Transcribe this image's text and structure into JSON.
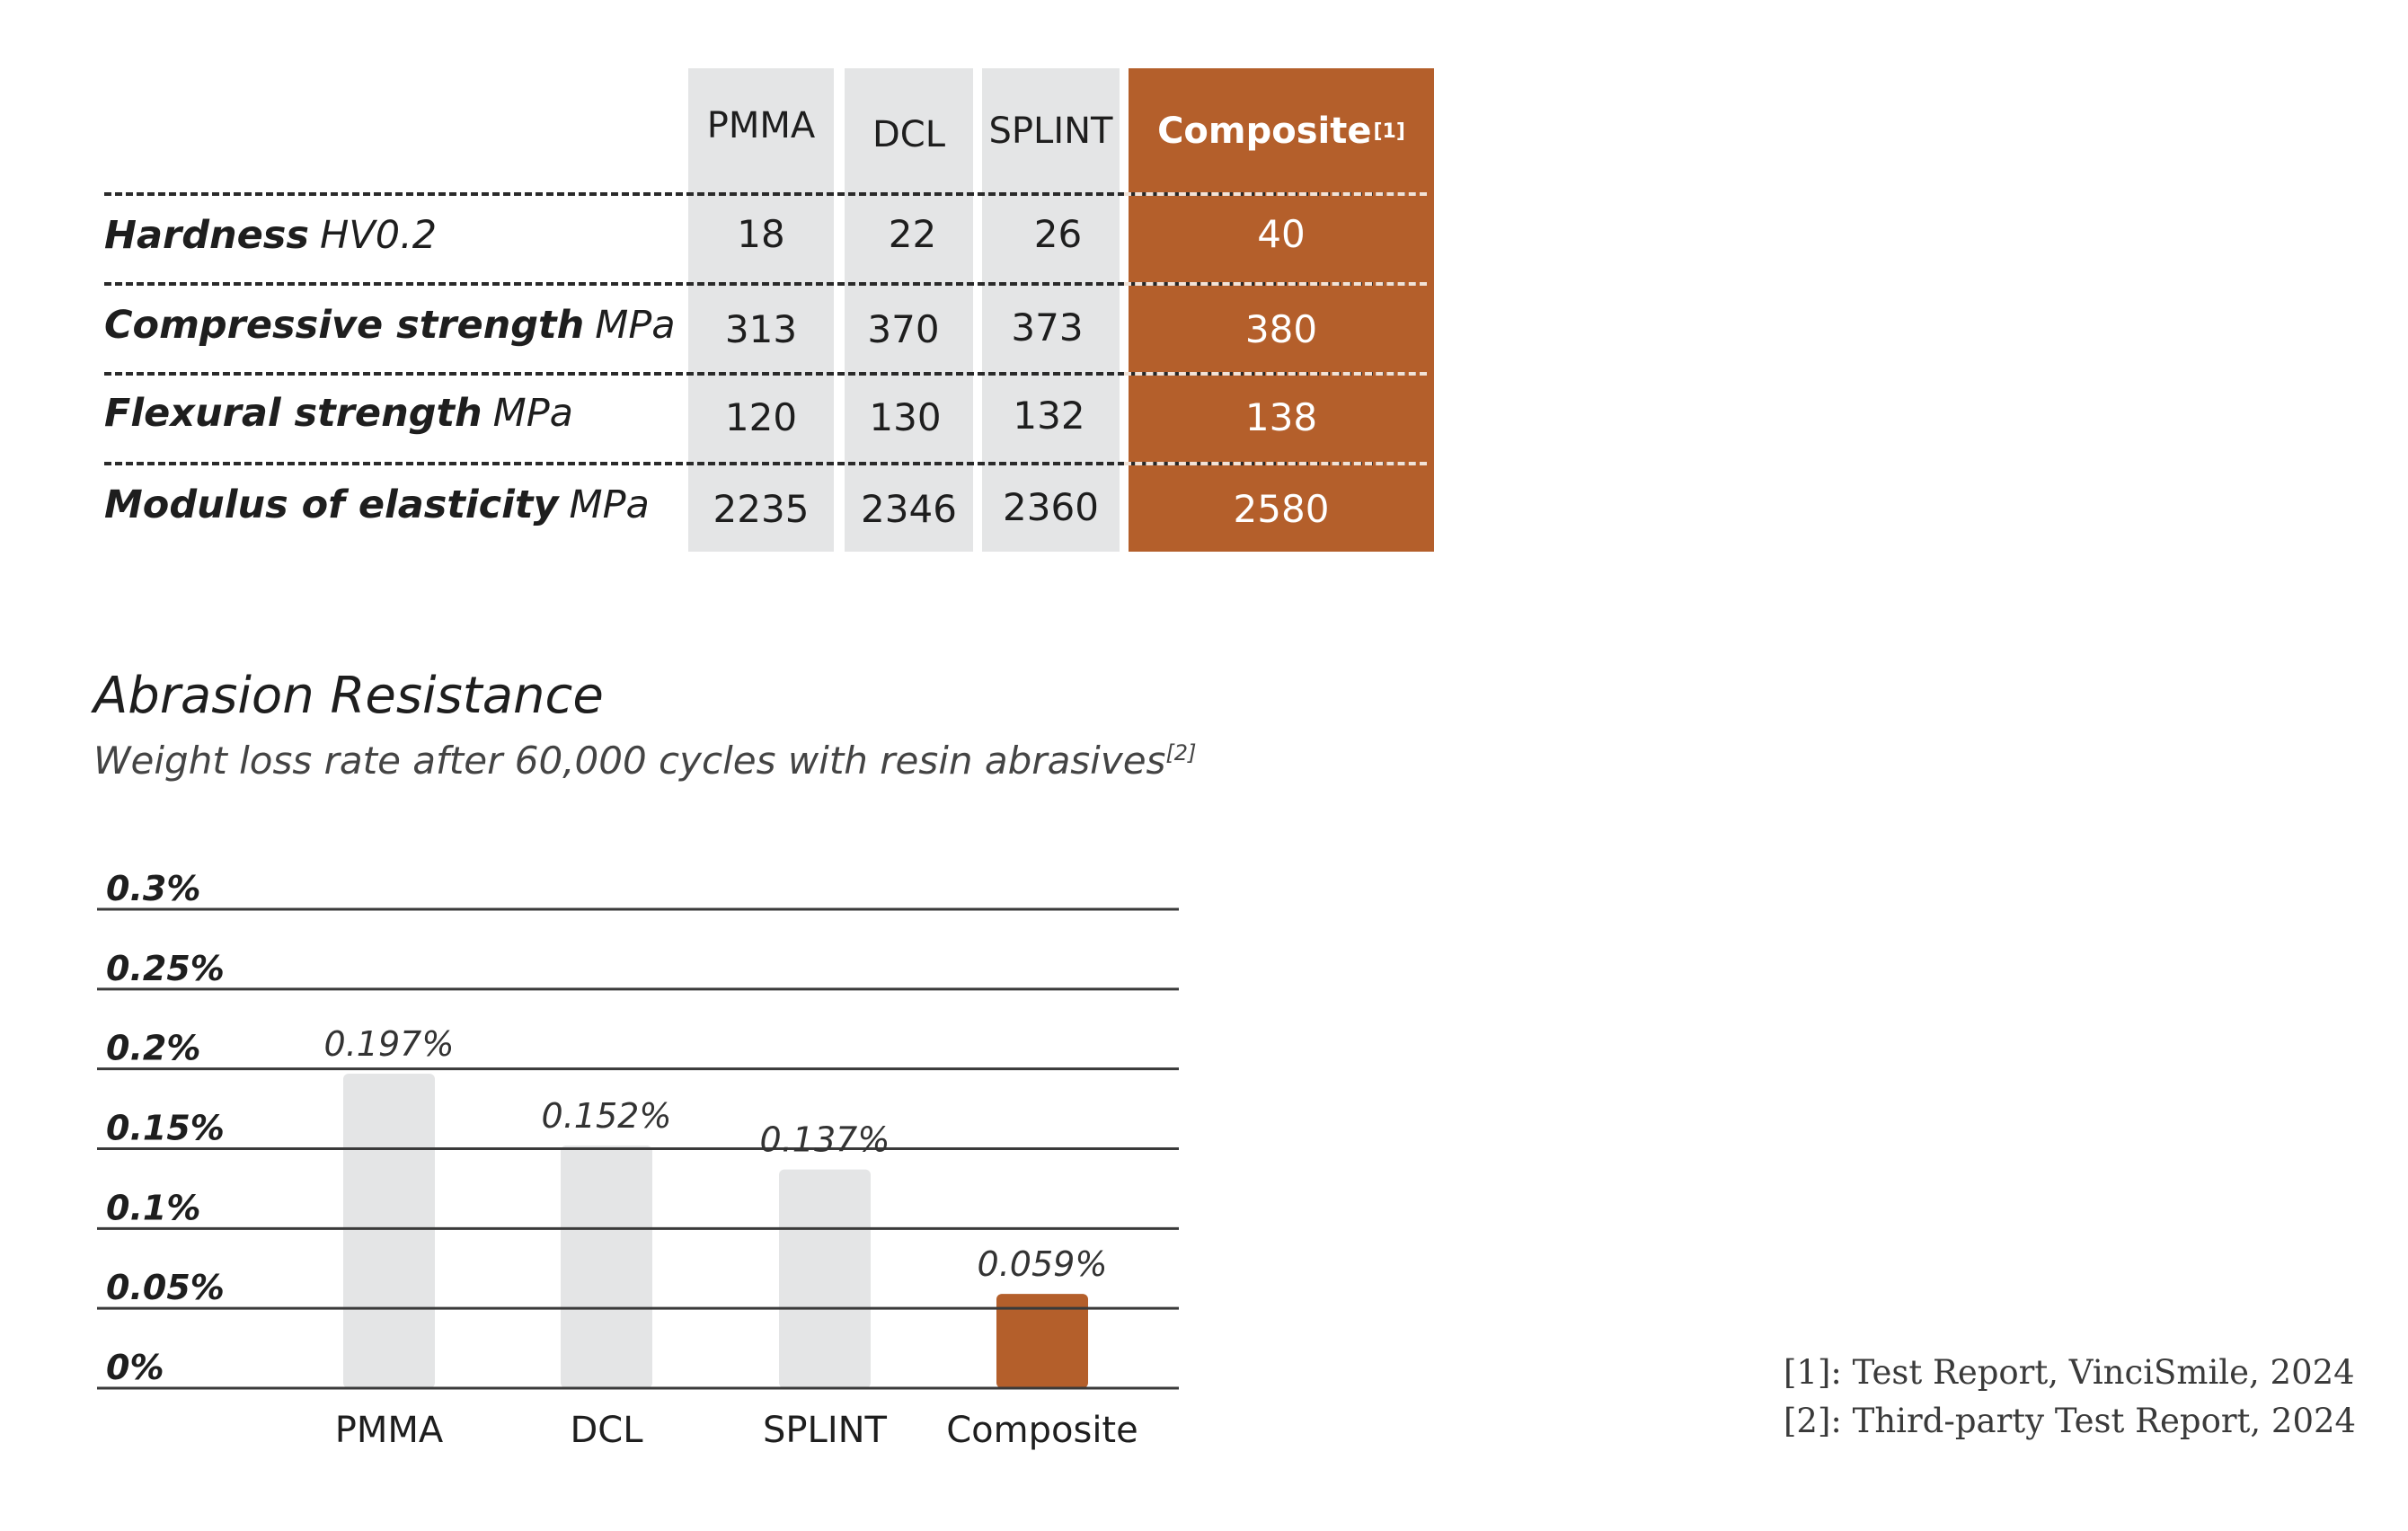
{
  "table": {
    "columns": [
      {
        "label": "PMMA",
        "sup": ""
      },
      {
        "label": "DCL",
        "sup": ""
      },
      {
        "label": "SPLINT",
        "sup": ""
      },
      {
        "label": "Composite",
        "sup": "[1]"
      }
    ],
    "rows": [
      {
        "label": "Hardness",
        "unit": "HV0.2",
        "values": [
          "18",
          "22",
          "26",
          "40"
        ]
      },
      {
        "label": "Compressive strength",
        "unit": "MPa",
        "values": [
          "313",
          "370",
          "373",
          "380"
        ]
      },
      {
        "label": "Flexural strength",
        "unit": "MPa",
        "values": [
          "120",
          "130",
          "132",
          "138"
        ]
      },
      {
        "label": "Modulus of elasticity",
        "unit": "MPa",
        "values": [
          "2235",
          "2346",
          "2360",
          "2580"
        ]
      }
    ]
  },
  "abrasion": {
    "title": "Abrasion Resistance",
    "subtitle": "Weight loss rate after 60,000 cycles with resin abrasives",
    "subtitle_sup": "[2]"
  },
  "chart_data": {
    "type": "bar",
    "categories": [
      "PMMA",
      "DCL",
      "SPLINT",
      "Composite"
    ],
    "values": [
      0.197,
      0.152,
      0.137,
      0.059
    ],
    "value_labels": [
      "0.197%",
      "0.152%",
      "0.137%",
      "0.059%"
    ],
    "yticks": [
      0,
      0.05,
      0.1,
      0.15,
      0.2,
      0.25,
      0.3
    ],
    "ytick_labels": [
      "0%",
      "0.05%",
      "0.1%",
      "0.15%",
      "0.2%",
      "0.25%",
      "0.3%"
    ],
    "ylim": [
      0,
      0.3
    ],
    "grid": true,
    "colors": {
      "other": "#e4e5e6",
      "highlight": "#b45f2b"
    }
  },
  "colors": {
    "accent": "#b45f2b",
    "grey": "#e4e5e6",
    "text": "#1e1e1e"
  },
  "footnotes": [
    "[1]: Test Report, VinciSmile, 2024",
    "[2]: Third-party Test Report, 2024"
  ]
}
